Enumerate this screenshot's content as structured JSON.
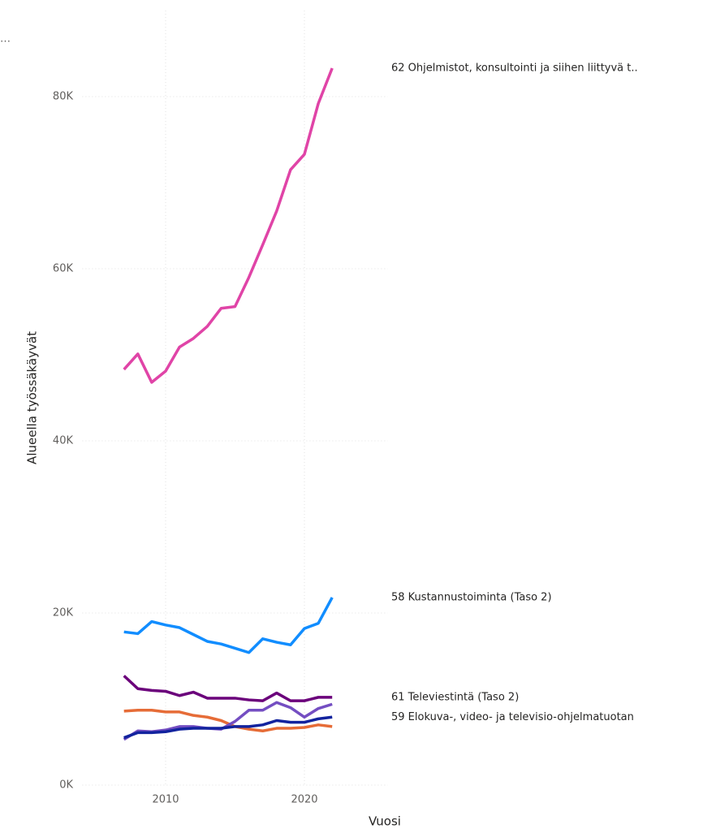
{
  "chart_data": {
    "type": "line",
    "title": "…",
    "xlabel": "Vuosi",
    "ylabel": "Alueella työssäkäyvät",
    "x": [
      2007,
      2008,
      2009,
      2010,
      2011,
      2012,
      2013,
      2014,
      2015,
      2016,
      2017,
      2018,
      2019,
      2020,
      2021,
      2022
    ],
    "xlim": [
      2004,
      2026
    ],
    "xticks": [
      2010,
      2020
    ],
    "ylim": [
      0,
      90000
    ],
    "yticks": [
      {
        "value": 0,
        "label": "0K"
      },
      {
        "value": 20000,
        "label": "20K"
      },
      {
        "value": 40000,
        "label": "40K"
      },
      {
        "value": 60000,
        "label": "60K"
      },
      {
        "value": 80000,
        "label": "80K"
      }
    ],
    "grid": true,
    "series": [
      {
        "name": "62 Ohjelmistot, konsultointi ja siihen liittyvä t..",
        "color": "#e044a7",
        "values": [
          48300,
          50100,
          46800,
          48100,
          50900,
          51900,
          53300,
          55400,
          55600,
          59000,
          62800,
          66700,
          71500,
          73300,
          79200,
          83300
        ]
      },
      {
        "name": "58 Kustannustoiminta (Taso 2)",
        "color": "#118dff",
        "values": [
          17800,
          17600,
          19000,
          18600,
          18300,
          17500,
          16700,
          16400,
          15900,
          15400,
          17000,
          16600,
          16300,
          18200,
          18800,
          21800
        ]
      },
      {
        "name": "61 Televiestintä (Taso 2)",
        "color": "#6b007b",
        "values": [
          12700,
          11200,
          11000,
          10900,
          10400,
          10800,
          10100,
          10100,
          10100,
          9900,
          9800,
          10700,
          9800,
          9800,
          10200,
          10200
        ]
      },
      {
        "color": "#e66c37",
        "values": [
          8600,
          8700,
          8700,
          8500,
          8500,
          8100,
          7900,
          7500,
          6800,
          6500,
          6300,
          6600,
          6600,
          6700,
          7000,
          6800
        ]
      },
      {
        "color": "#744ec2",
        "values": [
          5300,
          6300,
          6200,
          6400,
          6800,
          6800,
          6600,
          6500,
          7400,
          8700,
          8700,
          9600,
          9000,
          7900,
          8900,
          9400
        ]
      },
      {
        "name": "59 Elokuva-, video- ja televisio-ohjelmatuotan",
        "color": "#12239e",
        "values": [
          5500,
          6100,
          6100,
          6200,
          6500,
          6600,
          6600,
          6600,
          6800,
          6800,
          7000,
          7500,
          7300,
          7300,
          7700,
          7900
        ]
      }
    ]
  }
}
